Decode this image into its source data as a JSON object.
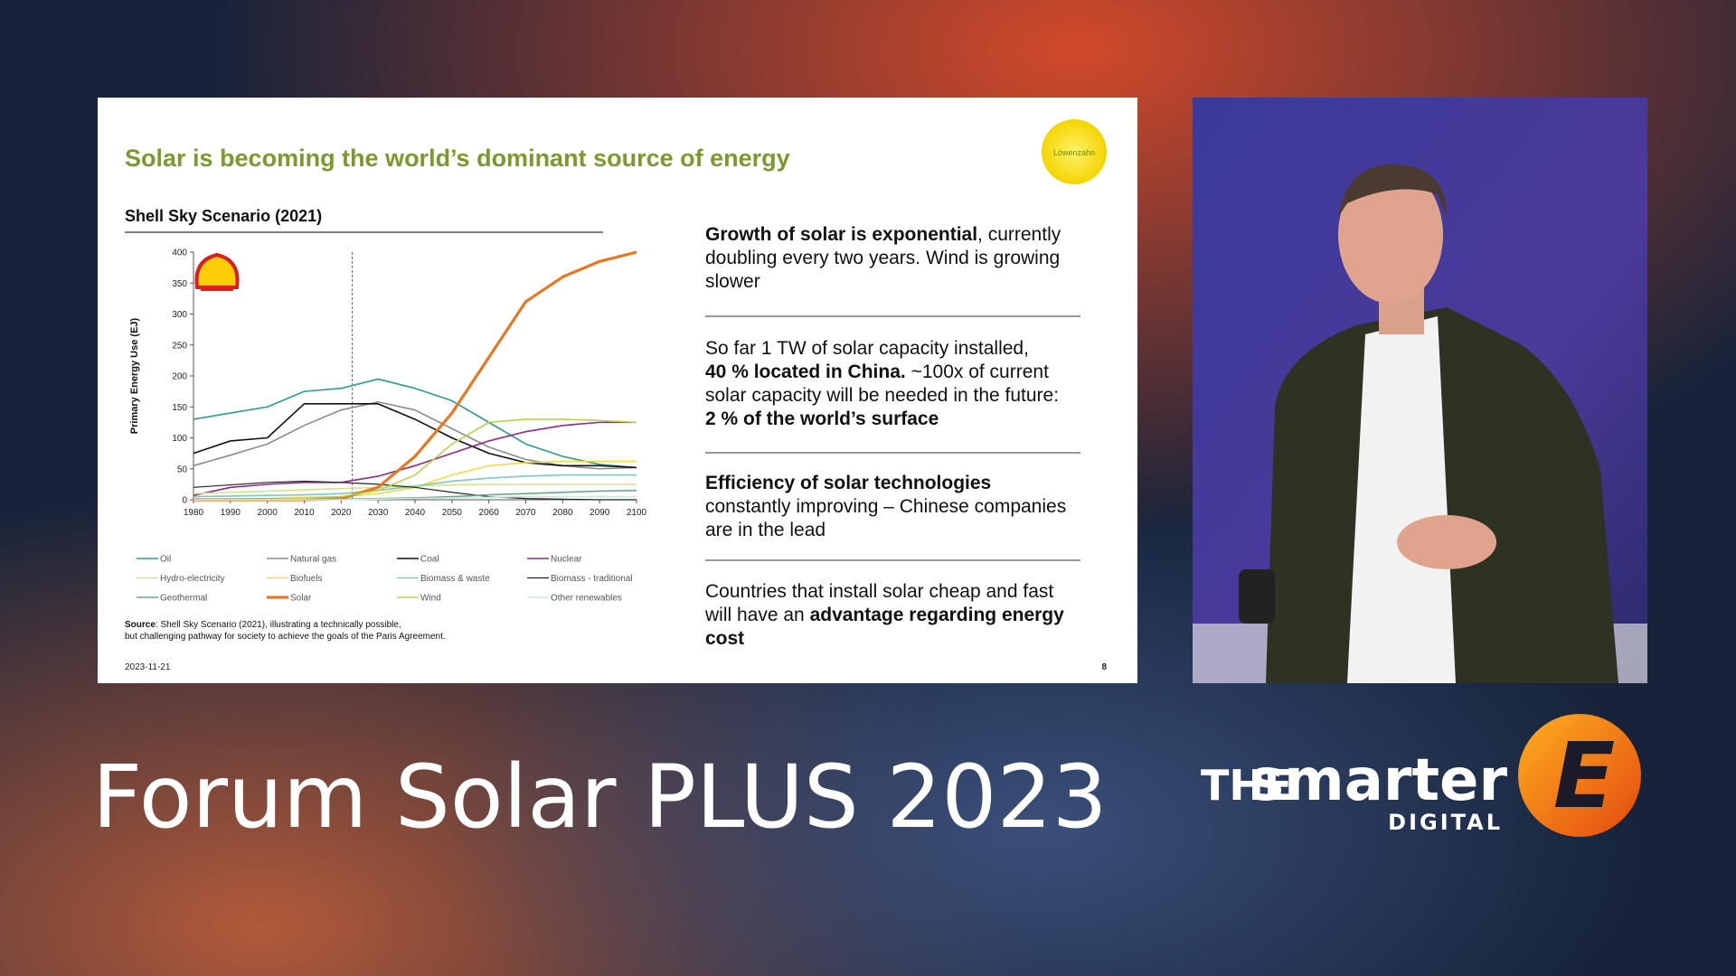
{
  "slide": {
    "title": "Solar is becoming the world’s dominant source of energy",
    "logo_text": "Löwenzahn",
    "paragraphs": [
      [
        [
          {
            "text": "Growth of solar is exponential",
            "bold": true
          },
          {
            "text": ", currently",
            "bold": false
          }
        ],
        [
          {
            "text": "doubling every two years. Wind is growing",
            "bold": false
          }
        ],
        [
          {
            "text": "slower",
            "bold": false
          }
        ]
      ],
      [
        [
          {
            "text": "So far 1 TW of solar capacity installed,",
            "bold": false
          }
        ],
        [
          {
            "text": "40 % located in China.",
            "bold": true
          },
          {
            "text": " ~100x of current",
            "bold": false
          }
        ],
        [
          {
            "text": "solar capacity will be needed in the future:",
            "bold": false
          }
        ],
        [
          {
            "text": "2 % of the world’s surface",
            "bold": true
          }
        ]
      ],
      [
        [
          {
            "text": "Efficiency of solar technologies",
            "bold": true
          }
        ],
        [
          {
            "text": "constantly improving – Chinese companies",
            "bold": false
          }
        ],
        [
          {
            "text": "are in the lead",
            "bold": false
          }
        ]
      ],
      [
        [
          {
            "text": "Countries that install solar cheap and fast",
            "bold": false
          }
        ],
        [
          {
            "text": "will have an ",
            "bold": false
          },
          {
            "text": "advantage regarding energy",
            "bold": true
          }
        ],
        [
          {
            "text": "cost",
            "bold": true
          }
        ]
      ]
    ],
    "source": [
      [
        {
          "text": "Source",
          "bold": true
        },
        {
          "text": ": Shell Sky Scenario (2021), illustrating a technically possible,",
          "bold": false
        }
      ],
      [
        {
          "text": "but challenging pathway for society to achieve the goals of the Paris Agreement.",
          "bold": false
        }
      ]
    ],
    "date": "2023-11-21",
    "page_number": "8"
  },
  "chart_data": {
    "type": "line",
    "title": "Shell Sky Scenario (2021)",
    "y_label": "Primary Energy Use (EJ)",
    "x": [
      1980,
      1990,
      2000,
      2010,
      2020,
      2030,
      2040,
      2050,
      2060,
      2070,
      2080,
      2090,
      2100
    ],
    "xlim": [
      1980,
      2100
    ],
    "xticks": [
      1980,
      1990,
      2000,
      2010,
      2020,
      2030,
      2040,
      2050,
      2060,
      2070,
      2080,
      2090,
      2100
    ],
    "ylim": [
      0,
      400
    ],
    "yticks": [
      0,
      50,
      100,
      150,
      200,
      250,
      300,
      350,
      400
    ],
    "reference_line_x": 2023,
    "series": [
      {
        "name": "Oil",
        "color": "#2a9d8f",
        "line_width": 1.6,
        "values": [
          130,
          140,
          150,
          175,
          180,
          195,
          180,
          160,
          125,
          90,
          70,
          57,
          52
        ]
      },
      {
        "name": "Natural gas",
        "color": "#8c8c8c",
        "line_width": 1.6,
        "values": [
          55,
          72,
          90,
          120,
          145,
          158,
          145,
          115,
          85,
          65,
          55,
          50,
          52
        ]
      },
      {
        "name": "Coal",
        "color": "#111111",
        "line_width": 1.6,
        "values": [
          75,
          95,
          100,
          155,
          155,
          155,
          130,
          100,
          75,
          60,
          55,
          55,
          52
        ]
      },
      {
        "name": "Nuclear",
        "color": "#8b2a8b",
        "line_width": 1.6,
        "values": [
          7,
          20,
          25,
          28,
          28,
          38,
          55,
          75,
          95,
          110,
          120,
          125,
          125
        ]
      },
      {
        "name": "Hydro-electricity",
        "color": "#d8e08a",
        "line_width": 1.6,
        "values": [
          10,
          12,
          14,
          16,
          18,
          20,
          22,
          24,
          25,
          25,
          25,
          25,
          25
        ]
      },
      {
        "name": "Biofuels",
        "color": "#f2d84a",
        "line_width": 1.6,
        "values": [
          0,
          1,
          2,
          4,
          5,
          10,
          20,
          40,
          55,
          60,
          62,
          62,
          62
        ]
      },
      {
        "name": "Biomass & waste",
        "color": "#7fc8c0",
        "line_width": 1.6,
        "values": [
          5,
          6,
          7,
          8,
          10,
          15,
          22,
          30,
          35,
          38,
          40,
          40,
          40
        ]
      },
      {
        "name": "Biomass - traditional",
        "color": "#222222",
        "line_width": 1.2,
        "values": [
          20,
          24,
          28,
          30,
          28,
          25,
          20,
          12,
          5,
          2,
          1,
          0,
          0
        ]
      },
      {
        "name": "Geothermal",
        "color": "#6aa88a",
        "line_width": 1.6,
        "values": [
          0,
          0,
          0,
          1,
          1,
          2,
          3,
          5,
          8,
          10,
          12,
          14,
          15
        ]
      },
      {
        "name": "Solar",
        "color": "#e87722",
        "line_width": 3.2,
        "values": [
          0,
          0,
          0,
          0,
          2,
          20,
          70,
          140,
          230,
          320,
          360,
          385,
          400
        ]
      },
      {
        "name": "Wind",
        "color": "#b8d04a",
        "line_width": 1.6,
        "values": [
          0,
          0,
          0,
          2,
          5,
          15,
          40,
          90,
          125,
          130,
          130,
          128,
          125
        ]
      },
      {
        "name": "Other renewables",
        "color": "#cfe8e0",
        "line_width": 1.6,
        "values": [
          0,
          0,
          0,
          0,
          0,
          1,
          2,
          3,
          4,
          5,
          5,
          5,
          5
        ]
      }
    ]
  },
  "banner": {
    "event": "Forum Solar PLUS 2023",
    "brand_prefix": "THE",
    "brand_name": "smarter",
    "brand_sub": "DIGITAL",
    "brand_mark": "E"
  }
}
